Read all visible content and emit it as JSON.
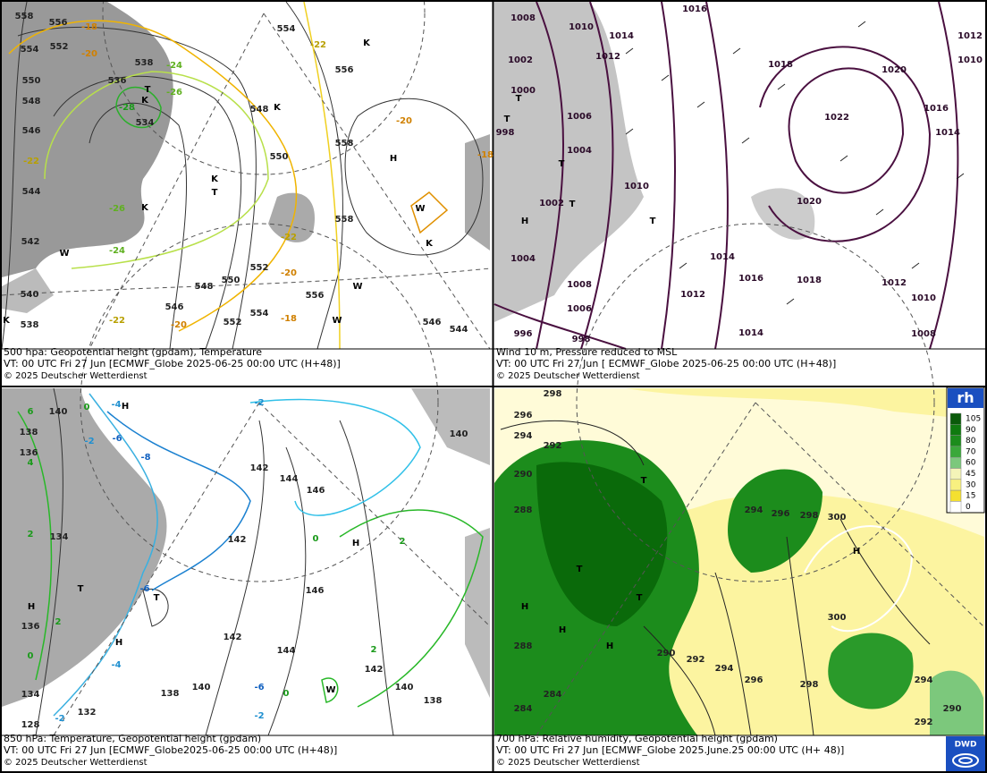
{
  "panels": [
    {
      "caption": [
        "500 hpa: Geopotential height (gpdam), Temperature",
        "VT: 00 UTC Fri  27 Jun [ECMWF_Globe 2025-06-25 00:00 UTC  (H+48)]",
        "© 2025 Deutscher Wetterdienst"
      ],
      "labels": [
        558,
        556,
        554,
        552,
        550,
        548,
        546,
        544,
        542,
        540,
        538,
        536,
        534,
        538,
        548,
        550,
        552,
        554,
        556,
        558,
        558,
        556,
        554,
        552,
        550,
        548,
        546,
        546,
        544,
        -18,
        -20,
        -22,
        -24,
        -26,
        -28,
        -22,
        -26,
        -24,
        -22,
        -20,
        -22,
        -20,
        -18,
        -20,
        -18,
        "H",
        "K",
        "K",
        "K",
        "K",
        "T",
        "T",
        "K",
        "W",
        "W",
        "W",
        "W",
        "K",
        "K"
      ]
    },
    {
      "caption": [
        "Wind 10 m, Pressure reduced to MSL",
        "VT: 00 UTC Fri  27 Jun [ ECMWF_Globe 2025-06-25 00:00 UTC  (H+48)]",
        "© 2025 Deutscher Wetterdienst"
      ],
      "labels": [
        1008,
        1010,
        1014,
        1012,
        1016,
        1018,
        1020,
        1022,
        1016,
        1014,
        1012,
        1010,
        1002,
        1000,
        998,
        1006,
        1004,
        1010,
        1002,
        1020,
        1004,
        1008,
        1006,
        1012,
        1014,
        1016,
        1018,
        1012,
        1010,
        1008,
        1014,
        996,
        998,
        "T",
        "T",
        "T",
        "T",
        "T",
        "H"
      ]
    },
    {
      "caption": [
        "850 hPa:  Temperature, Geopotential height (gpdam)",
        "VT: 00 UTC Fri  27 Jun [ECMWF_Globe2025-06-25 00:00 UTC  (H+48)]",
        "© 2025 Deutscher Wetterdienst"
      ],
      "labels": [
        140,
        138,
        136,
        134,
        136,
        134,
        128,
        132,
        138,
        140,
        142,
        142,
        142,
        144,
        146,
        146,
        144,
        142,
        140,
        138,
        140,
        -4,
        -2,
        -6,
        -8,
        -2,
        -6,
        -4,
        -6,
        -2,
        -2,
        0,
        0,
        0,
        0,
        2,
        2,
        2,
        2,
        4,
        6,
        "H",
        "H",
        "H",
        "H",
        "T",
        "T",
        "W"
      ]
    },
    {
      "caption": [
        "700 hPa:  Relative humidity, Geopotential height (gpdam)",
        "VT: 00 UTC Fri  27 Jun [ECMWF_Globe  2025.June.25 00:00 UTC  (H+ 48)]",
        "© 2025 Deutscher Wetterdienst"
      ],
      "labels": [
        298,
        296,
        294,
        292,
        290,
        288,
        288,
        284,
        284,
        290,
        292,
        294,
        296,
        298,
        294,
        296,
        298,
        300,
        300,
        292,
        294,
        290,
        "T",
        "T",
        "T",
        "H",
        "H",
        "H",
        "H"
      ]
    }
  ],
  "legend": {
    "title": "rh",
    "levels": [
      105,
      90,
      80,
      70,
      60,
      45,
      30,
      15,
      0
    ]
  },
  "logo": "DWD"
}
